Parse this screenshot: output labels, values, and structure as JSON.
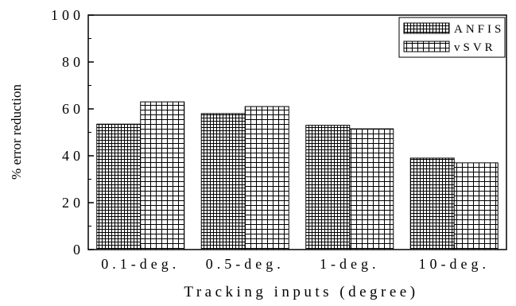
{
  "chart_data": {
    "type": "bar",
    "categories": [
      "0.1-deg.",
      "0.5-deg.",
      "1-deg.",
      "10-deg."
    ],
    "series": [
      {
        "name": "ANFIS",
        "values": [
          53.5,
          58,
          53,
          39
        ],
        "pattern": "dense-grid"
      },
      {
        "name": "vSVR",
        "values": [
          63,
          61,
          51.5,
          37
        ],
        "pattern": "grid"
      }
    ],
    "xlabel": "Tracking inputs (degree)",
    "ylabel": "% error reduction",
    "ylim": [
      0,
      100
    ],
    "yticks": [
      "0",
      "20",
      "40",
      "60",
      "80",
      "100"
    ],
    "legend": "top-right",
    "grid": false,
    "colors": {
      "ink": "#000000",
      "background": "#ffffff"
    }
  }
}
